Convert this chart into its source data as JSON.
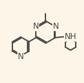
{
  "background_color": "#fdf6e8",
  "bond_color": "#4a4a4a",
  "atom_color": "#4a4a4a",
  "line_width": 1.4,
  "font_size": 8.5,
  "figsize": [
    1.22,
    1.21
  ],
  "dpi": 100,
  "xlim": [
    0.0,
    1.0
  ],
  "ylim": [
    0.0,
    1.0
  ]
}
